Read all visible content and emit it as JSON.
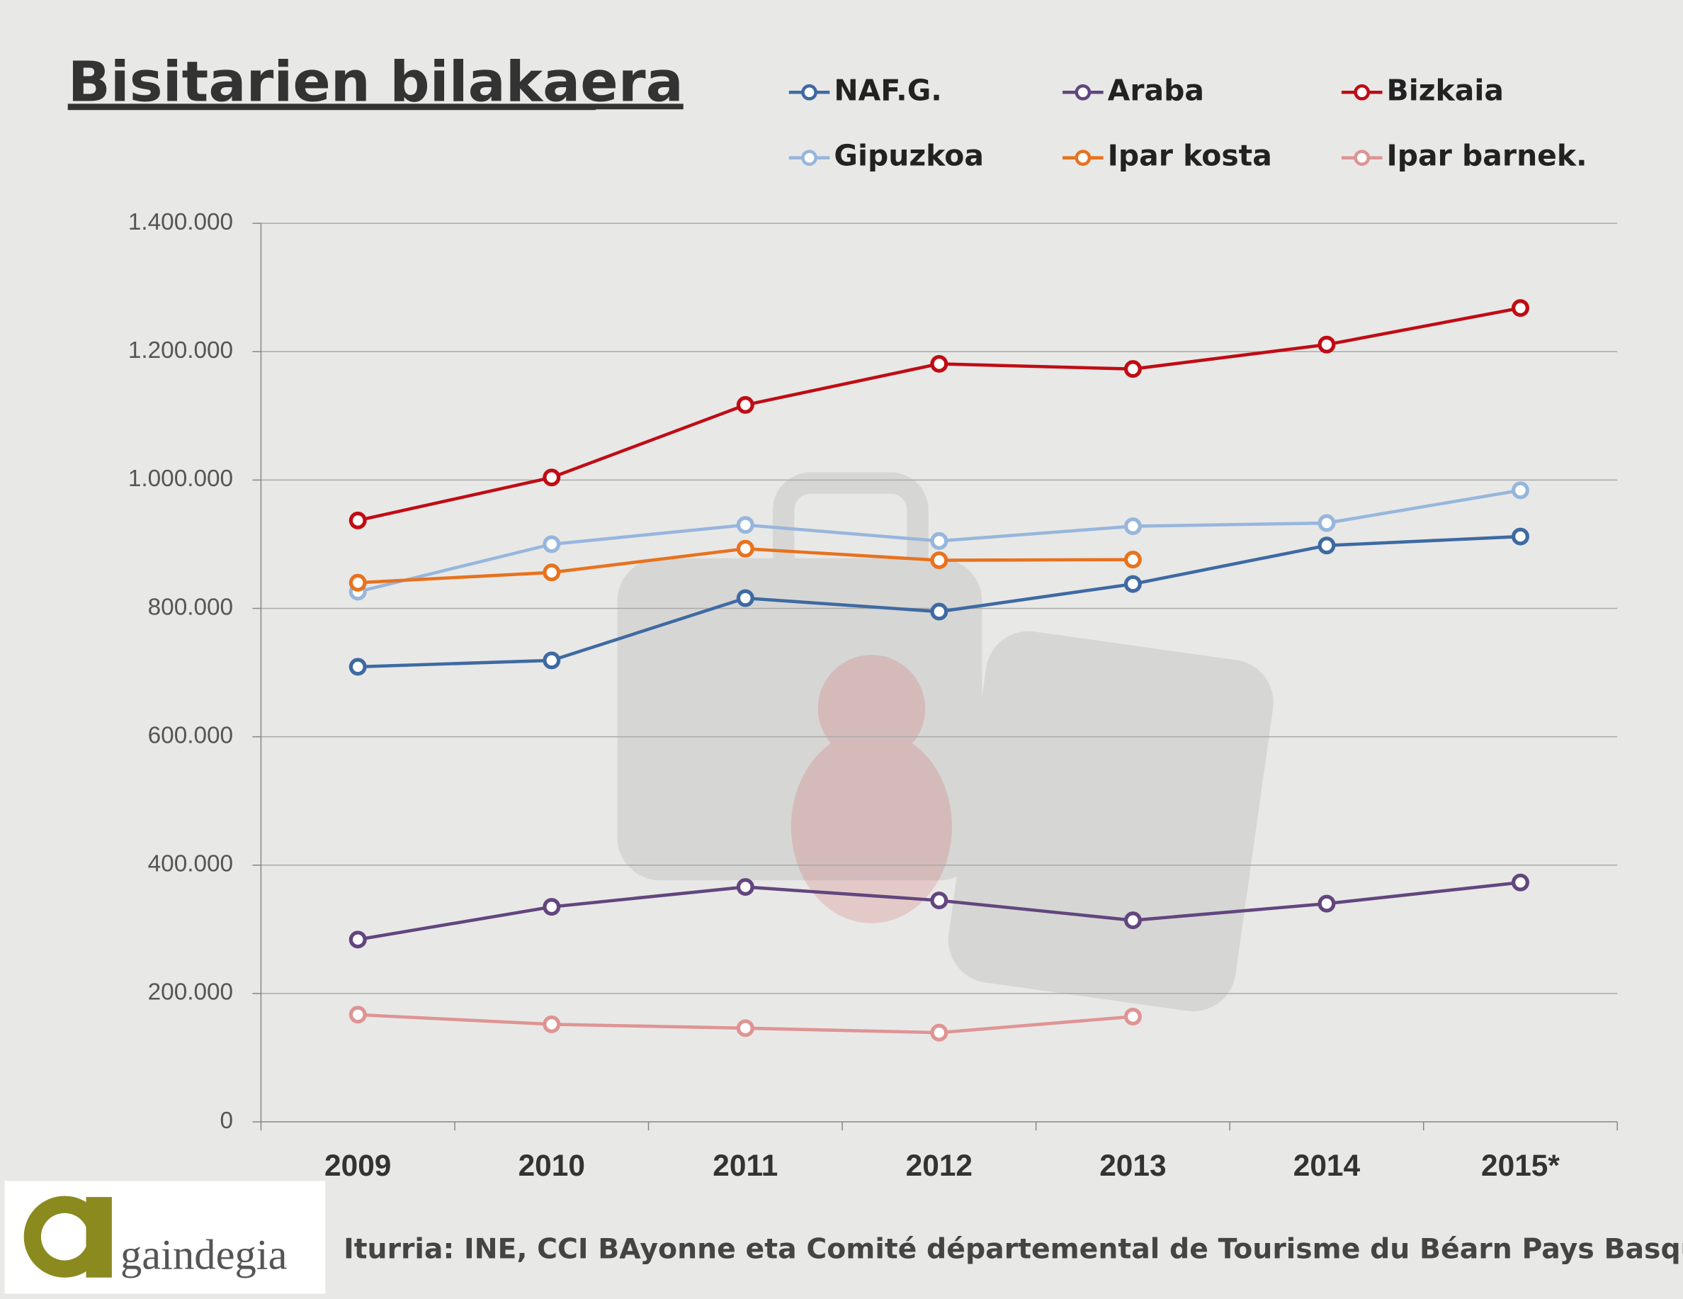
{
  "chart_data": {
    "type": "line",
    "title": "Bisitarien bilakaera",
    "categories": [
      "2009",
      "2010",
      "2011",
      "2012",
      "2013",
      "2014",
      "2015*"
    ],
    "series": [
      {
        "name": "NAF.G.",
        "color": "#3e6aa2",
        "values": [
          709000,
          719000,
          816000,
          795000,
          838000,
          898000,
          912000
        ]
      },
      {
        "name": "Araba",
        "color": "#62467e",
        "values": [
          284000,
          335000,
          366000,
          345000,
          314000,
          340000,
          373000
        ]
      },
      {
        "name": "Bizkaia",
        "color": "#c00c14",
        "values": [
          937000,
          1004000,
          1117000,
          1181000,
          1173000,
          1211000,
          1268000
        ]
      },
      {
        "name": "Gipuzkoa",
        "color": "#97b6dc",
        "values": [
          826000,
          900000,
          930000,
          905000,
          928000,
          933000,
          984000
        ]
      },
      {
        "name": "Ipar kosta",
        "color": "#e8721e",
        "values": [
          840000,
          856000,
          893000,
          875000,
          876000,
          null,
          null
        ]
      },
      {
        "name": "Ipar barnek.",
        "color": "#de9493",
        "values": [
          167000,
          152000,
          146000,
          139000,
          164000,
          null,
          null
        ]
      }
    ],
    "ylim": [
      0,
      1400000
    ],
    "yticks": [
      0,
      {
        "value": 200000,
        "label": "200.000"
      },
      {
        "value": 400000,
        "label": "400.000"
      },
      {
        "value": 600000,
        "label": "600.000"
      },
      {
        "value": 800000,
        "label": "800.000"
      },
      {
        "value": 1000000,
        "label": "1.000.000"
      },
      {
        "value": 1200000,
        "label": "1.200.000"
      },
      {
        "value": 1400000,
        "label": "1.400.000"
      }
    ],
    "grid": true,
    "source": "Iturria: INE, CCI BAyonne eta Comité départemental de Tourisme du Béarn Pays Basque.",
    "logo": "gaindegia"
  }
}
